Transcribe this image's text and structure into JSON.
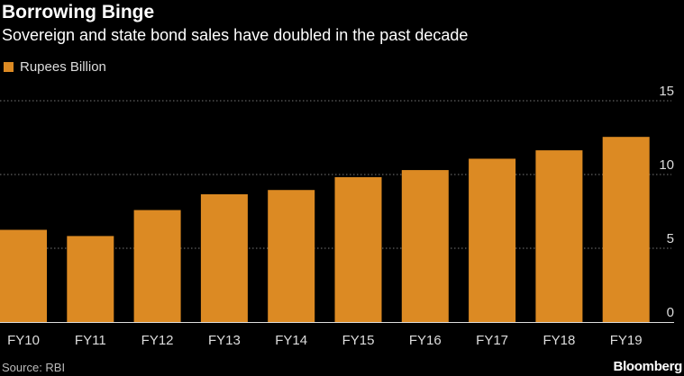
{
  "chart_data": {
    "type": "bar",
    "title": "Borrowing Binge",
    "subtitle": "Sovereign and state bond sales have doubled in the past decade",
    "legend": [
      "Rupees Billion"
    ],
    "categories": [
      "FY10",
      "FY11",
      "FY12",
      "FY13",
      "FY14",
      "FY15",
      "FY16",
      "FY17",
      "FY18",
      "FY19"
    ],
    "values": [
      6.25,
      5.83,
      7.59,
      8.66,
      8.95,
      9.82,
      10.3,
      11.07,
      11.64,
      12.55
    ],
    "ylim": [
      0,
      15
    ],
    "yticks": [
      0,
      5,
      10,
      15
    ],
    "yaxis_side": "right",
    "grid": true,
    "xlabel": "",
    "ylabel": "",
    "bar_color": "#dc8a23",
    "source": "Source: RBI",
    "brand": "Bloomberg"
  }
}
